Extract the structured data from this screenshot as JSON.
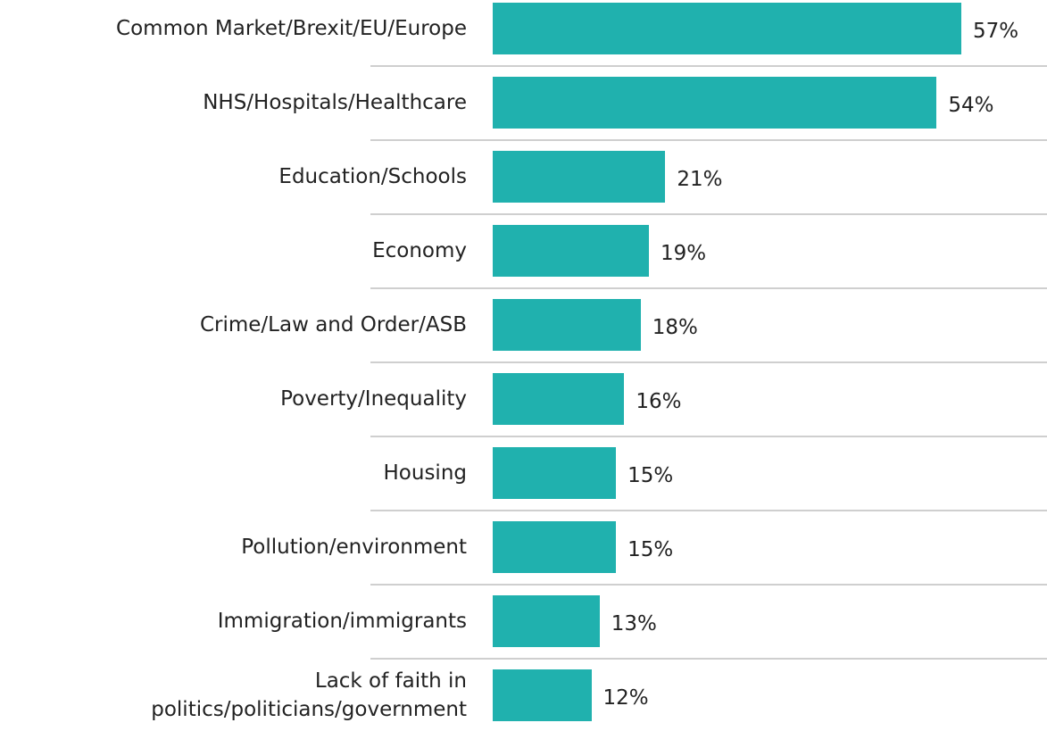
{
  "chart_data": {
    "type": "bar",
    "orientation": "horizontal",
    "categories": [
      "Common Market/Brexit/EU/Europe",
      "NHS/Hospitals/Healthcare",
      "Education/Schools",
      "Economy",
      "Crime/Law and Order/ASB",
      "Poverty/Inequality",
      "Housing",
      "Pollution/environment",
      "Immigration/immigrants",
      "Lack of faith in\npolitics/politicians/government"
    ],
    "values": [
      57,
      54,
      21,
      19,
      18,
      16,
      15,
      15,
      13,
      12
    ],
    "value_labels": [
      "57%",
      "54%",
      "21%",
      "19%",
      "18%",
      "16%",
      "15%",
      "15%",
      "13%",
      "12%"
    ],
    "color": "#20b1ae"
  }
}
